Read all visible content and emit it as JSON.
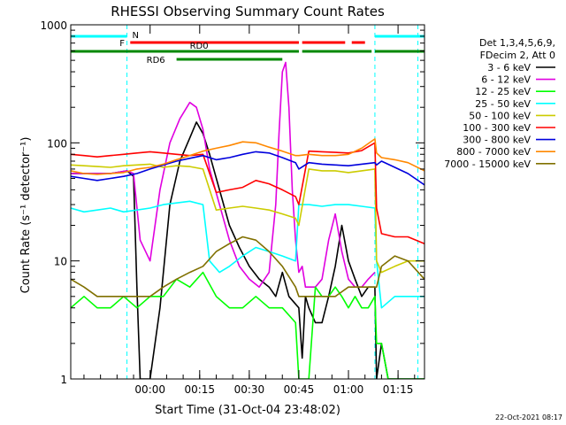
{
  "chart_data": {
    "type": "line",
    "title": "RHESSI Observing Summary Count Rates",
    "xlabel": "Start Time (31-Oct-04 23:48:02)",
    "ylabel": "Count Rate (s⁻¹ detector⁻¹)",
    "x_unit": "minutes since 31-Oct-04 23:48:02",
    "xlim": [
      -12,
      95
    ],
    "ylim": [
      1,
      1000
    ],
    "yscale": "log",
    "x_ticks": [
      {
        "value": 12,
        "label": "00:00"
      },
      {
        "value": 27,
        "label": "00:15"
      },
      {
        "value": 42,
        "label": "00:30"
      },
      {
        "value": 57,
        "label": "00:45"
      },
      {
        "value": 72,
        "label": "01:00"
      },
      {
        "value": 87,
        "label": "01:15"
      }
    ],
    "y_ticks": [
      {
        "value": 1,
        "label": "1"
      },
      {
        "value": 10,
        "label": "10"
      },
      {
        "value": 100,
        "label": "100"
      },
      {
        "value": 1000,
        "label": "1000"
      }
    ],
    "legend_header": [
      "Det 1,3,4,5,6,9,",
      "FDecim 2, Att 0"
    ],
    "footer_date": "22-Oct-2021 08:17",
    "legend_position": "right",
    "grid": false,
    "series": [
      {
        "name": "3 - 6 keV",
        "color": "#000000",
        "x": [
          -12,
          0,
          5,
          7,
          8,
          9,
          12,
          15,
          18,
          21,
          24,
          26,
          28,
          30,
          33,
          36,
          39,
          42,
          45,
          48,
          50,
          52,
          54,
          57,
          58,
          59,
          60,
          62,
          64,
          66,
          68,
          70,
          72,
          74,
          76,
          78,
          80,
          80.5,
          82,
          84,
          86,
          88,
          90,
          92,
          95
        ],
        "y": [
          55,
          55,
          58,
          52,
          6,
          1,
          1,
          4,
          30,
          70,
          110,
          150,
          120,
          80,
          40,
          20,
          13,
          9,
          7,
          6,
          5,
          8,
          5,
          4,
          1.5,
          5,
          4,
          3,
          3,
          5,
          9,
          20,
          10,
          7,
          5,
          6,
          6,
          1,
          2,
          1,
          1,
          1,
          1,
          1,
          1
        ]
      },
      {
        "name": "6 - 12 keV",
        "color": "#e000e0",
        "x": [
          -12,
          0,
          5,
          7,
          9,
          12,
          15,
          18,
          21,
          24,
          26,
          28,
          30,
          33,
          36,
          39,
          42,
          45,
          48,
          50,
          51,
          52,
          53,
          54,
          55,
          56,
          57,
          58,
          59,
          62,
          64,
          66,
          68,
          70,
          72,
          74,
          76,
          78,
          80
        ],
        "y": [
          55,
          55,
          58,
          55,
          15,
          10,
          40,
          100,
          160,
          220,
          200,
          130,
          60,
          30,
          15,
          9,
          7,
          6,
          8,
          30,
          120,
          400,
          480,
          200,
          40,
          15,
          8,
          9,
          6,
          6,
          7,
          15,
          25,
          12,
          7,
          6,
          6,
          7,
          8
        ]
      },
      {
        "name": "12 - 25 keV",
        "color": "#00ff00",
        "x": [
          -12,
          -8,
          -4,
          0,
          4,
          8,
          12,
          16,
          20,
          24,
          28,
          32,
          36,
          40,
          44,
          48,
          52,
          56,
          57,
          60,
          62,
          64,
          66,
          68,
          70,
          72,
          74,
          76,
          78,
          80,
          80.5,
          82,
          84,
          86,
          88,
          90,
          92,
          95
        ],
        "y": [
          4,
          5,
          4,
          4,
          5,
          4,
          5,
          5,
          7,
          6,
          8,
          5,
          4,
          4,
          5,
          4,
          4,
          3,
          1,
          1,
          6,
          5,
          5,
          6,
          5,
          4,
          5,
          4,
          4,
          5,
          2,
          2,
          1,
          1,
          1,
          1,
          1,
          1
        ]
      },
      {
        "name": "25 - 50 keV",
        "color": "#00ffff",
        "x": [
          -12,
          -8,
          -4,
          0,
          4,
          8,
          12,
          16,
          20,
          24,
          28,
          30,
          33,
          36,
          40,
          44,
          48,
          52,
          56,
          57,
          60,
          64,
          68,
          72,
          76,
          80,
          80.5,
          82,
          86,
          90,
          95
        ],
        "y": [
          28,
          26,
          27,
          28,
          26,
          27,
          28,
          30,
          31,
          32,
          30,
          10,
          8,
          9,
          11,
          13,
          12,
          11,
          10,
          30,
          30,
          29,
          30,
          30,
          29,
          28,
          10,
          4,
          5,
          5,
          5
        ]
      },
      {
        "name": "50 - 100 keV",
        "color": "#cccc00",
        "x": [
          -12,
          -8,
          -4,
          0,
          4,
          8,
          12,
          16,
          20,
          24,
          28,
          32,
          36,
          40,
          44,
          48,
          52,
          56,
          57,
          60,
          64,
          68,
          72,
          76,
          80,
          80.5,
          82,
          86,
          90,
          95
        ],
        "y": [
          65,
          64,
          63,
          62,
          64,
          65,
          66,
          62,
          64,
          63,
          60,
          27,
          28,
          29,
          28,
          27,
          25,
          23,
          20,
          60,
          58,
          58,
          56,
          58,
          60,
          10,
          8,
          9,
          10,
          10
        ]
      },
      {
        "name": "100 - 300 keV",
        "color": "#ff0000",
        "x": [
          -12,
          -8,
          -4,
          0,
          4,
          8,
          12,
          16,
          20,
          24,
          28,
          32,
          36,
          40,
          44,
          48,
          52,
          56,
          57,
          60,
          64,
          68,
          72,
          76,
          80,
          80.5,
          82,
          86,
          90,
          95
        ],
        "y": [
          80,
          78,
          76,
          78,
          80,
          82,
          84,
          82,
          80,
          78,
          80,
          38,
          40,
          42,
          48,
          45,
          40,
          35,
          30,
          85,
          84,
          83,
          82,
          86,
          100,
          28,
          17,
          16,
          16,
          14
        ]
      },
      {
        "name": "300 - 800 keV",
        "color": "#0000dd",
        "x": [
          -12,
          -8,
          -4,
          0,
          4,
          8,
          12,
          16,
          20,
          24,
          28,
          32,
          36,
          40,
          44,
          48,
          52,
          56,
          57,
          60,
          64,
          68,
          72,
          76,
          80,
          80.5,
          82,
          86,
          90,
          95
        ],
        "y": [
          52,
          50,
          48,
          50,
          52,
          55,
          60,
          65,
          70,
          74,
          78,
          72,
          75,
          80,
          84,
          82,
          75,
          68,
          60,
          68,
          66,
          65,
          64,
          66,
          68,
          65,
          70,
          62,
          55,
          44
        ]
      },
      {
        "name": "800 - 7000 keV",
        "color": "#ff8800",
        "x": [
          -12,
          -8,
          -4,
          0,
          4,
          8,
          12,
          16,
          20,
          24,
          28,
          32,
          36,
          40,
          44,
          48,
          52,
          56,
          57,
          60,
          64,
          68,
          72,
          76,
          80,
          80.5,
          82,
          86,
          90,
          95
        ],
        "y": [
          58,
          55,
          54,
          55,
          56,
          60,
          62,
          66,
          72,
          78,
          85,
          90,
          95,
          102,
          100,
          92,
          85,
          78,
          78,
          80,
          78,
          78,
          80,
          90,
          108,
          82,
          75,
          72,
          68,
          58
        ]
      },
      {
        "name": "7000 - 15000 keV",
        "color": "#807000",
        "x": [
          -12,
          -8,
          -4,
          0,
          4,
          8,
          12,
          16,
          20,
          24,
          28,
          32,
          36,
          40,
          44,
          48,
          52,
          56,
          57,
          60,
          64,
          68,
          72,
          76,
          80,
          80.5,
          82,
          86,
          90,
          95
        ],
        "y": [
          7,
          6,
          5,
          5,
          5,
          5,
          5,
          6,
          7,
          8,
          9,
          12,
          14,
          16,
          15,
          12,
          9,
          6,
          5,
          5,
          5,
          5,
          6,
          6,
          6,
          6,
          9,
          11,
          10,
          7
        ]
      }
    ],
    "attenuator_bars": [
      {
        "label": "N",
        "color": "#00ffff",
        "segments": [
          [
            -12,
            5
          ],
          [
            80,
            95
          ]
        ],
        "row": 1
      },
      {
        "label": "F",
        "color": "#ff0000",
        "segments": [
          [
            6,
            57
          ],
          [
            58,
            71
          ],
          [
            73,
            77
          ]
        ],
        "row": 2
      },
      {
        "label": "RD0",
        "color": "#008800",
        "segments": [
          [
            -12,
            57
          ],
          [
            58,
            79
          ],
          [
            80,
            95
          ]
        ],
        "row": 3
      },
      {
        "label": "RD6",
        "color": "#008800",
        "segments": [
          [
            20,
            52
          ]
        ],
        "row": 4
      }
    ],
    "vertical_markers": [
      {
        "x": 5,
        "color": "#00ffff",
        "style": "dashed"
      },
      {
        "x": 80,
        "color": "#00ffff",
        "style": "dashed"
      },
      {
        "x": 93,
        "color": "#00ffff",
        "style": "dashed"
      }
    ]
  }
}
